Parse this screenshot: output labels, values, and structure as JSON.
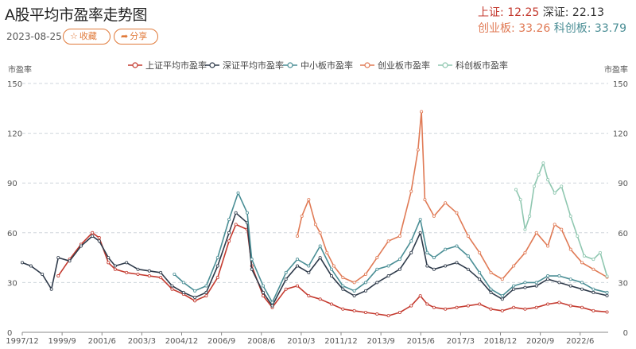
{
  "header": {
    "title": "A股平均市盈率走势图",
    "date": "2023-08-25",
    "fav_label": "收藏",
    "share_label": "分享"
  },
  "stats": {
    "sh_label": "上证:",
    "sh_value": "12.25",
    "sz_label": "深证:",
    "sz_value": "22.13",
    "cyb_label": "创业板:",
    "cyb_value": "33.26",
    "kcb_label": "科创板:",
    "kcb_value": "33.79"
  },
  "chart_data": {
    "type": "line",
    "title": "",
    "ylabel_left": "市盈率",
    "ylabel_right": "市盈率",
    "ylim": [
      0,
      150
    ],
    "yticks": [
      0,
      30,
      60,
      90,
      120,
      150
    ],
    "xlim": [
      1997.92,
      2023.65
    ],
    "x_tick_labels": [
      "1997/12",
      "1999/9",
      "2001/6",
      "2003/3",
      "2004/12",
      "2006/9",
      "2008/6",
      "2010/3",
      "2011/12",
      "2013/9",
      "2015/6",
      "2017/3",
      "2018/12",
      "2020/9",
      "2022/6"
    ],
    "x_tick_values": [
      1997.92,
      1999.67,
      2001.42,
      2003.17,
      2004.92,
      2006.67,
      2008.42,
      2010.17,
      2011.92,
      2013.67,
      2015.42,
      2017.17,
      2018.92,
      2020.67,
      2022.42
    ],
    "legend_position": "top",
    "grid": true,
    "series": [
      {
        "name": "上证平均市盈率",
        "color": "#c43a2f",
        "x": [
          1999.5,
          2000.0,
          2000.5,
          2001.0,
          2001.3,
          2001.7,
          2002.0,
          2002.5,
          2003.0,
          2003.5,
          2004.0,
          2004.5,
          2005.0,
          2005.5,
          2006.0,
          2006.5,
          2007.0,
          2007.3,
          2007.8,
          2008.0,
          2008.5,
          2008.9,
          2009.5,
          2010.0,
          2010.5,
          2011.0,
          2011.5,
          2012.0,
          2012.5,
          2013.0,
          2013.5,
          2014.0,
          2014.5,
          2015.0,
          2015.4,
          2015.7,
          2016.0,
          2016.5,
          2017.0,
          2017.5,
          2018.0,
          2018.5,
          2019.0,
          2019.5,
          2020.0,
          2020.5,
          2021.0,
          2021.5,
          2022.0,
          2022.5,
          2023.0,
          2023.6
        ],
        "y": [
          34,
          44,
          53,
          60,
          57,
          42,
          38,
          36,
          35,
          34,
          33,
          26,
          23,
          19,
          22,
          33,
          55,
          65,
          62,
          40,
          22,
          15,
          26,
          28,
          22,
          20,
          17,
          14,
          13,
          12,
          11,
          10,
          12,
          16,
          22,
          17,
          15,
          14,
          15,
          16,
          17,
          14,
          13,
          15,
          14,
          15,
          17,
          18,
          16,
          15,
          13,
          12.25
        ]
      },
      {
        "name": "深证平均市盈率",
        "color": "#2e3a4a",
        "x": [
          1997.92,
          1998.3,
          1998.8,
          1999.2,
          1999.5,
          2000.0,
          2000.5,
          2001.0,
          2001.3,
          2001.7,
          2002.0,
          2002.5,
          2003.0,
          2003.5,
          2004.0,
          2004.5,
          2005.0,
          2005.5,
          2006.0,
          2006.5,
          2007.0,
          2007.3,
          2007.8,
          2008.0,
          2008.5,
          2008.9,
          2009.5,
          2010.0,
          2010.5,
          2011.0,
          2011.5,
          2012.0,
          2012.5,
          2013.0,
          2013.5,
          2014.0,
          2014.5,
          2015.0,
          2015.4,
          2015.7,
          2016.0,
          2016.5,
          2017.0,
          2017.5,
          2018.0,
          2018.5,
          2019.0,
          2019.5,
          2020.0,
          2020.5,
          2021.0,
          2021.5,
          2022.0,
          2022.5,
          2023.0,
          2023.6
        ],
        "y": [
          42,
          40,
          35,
          26,
          45,
          43,
          52,
          58,
          55,
          45,
          40,
          42,
          38,
          37,
          36,
          28,
          24,
          21,
          24,
          40,
          60,
          72,
          66,
          38,
          24,
          16,
          32,
          40,
          36,
          45,
          34,
          26,
          22,
          25,
          30,
          34,
          38,
          48,
          60,
          40,
          38,
          40,
          42,
          38,
          32,
          24,
          20,
          26,
          27,
          28,
          32,
          30,
          28,
          26,
          24,
          22.13
        ]
      },
      {
        "name": "中小板市盈率",
        "color": "#4a8e95",
        "x": [
          2004.6,
          2005.0,
          2005.5,
          2006.0,
          2006.5,
          2007.0,
          2007.4,
          2007.8,
          2008.0,
          2008.5,
          2008.9,
          2009.5,
          2010.0,
          2010.5,
          2011.0,
          2011.5,
          2012.0,
          2012.5,
          2013.0,
          2013.5,
          2014.0,
          2014.5,
          2015.0,
          2015.4,
          2015.7,
          2016.0,
          2016.5,
          2017.0,
          2017.5,
          2018.0,
          2018.5,
          2019.0,
          2019.5,
          2020.0,
          2020.5,
          2021.0,
          2021.5,
          2022.0,
          2022.5,
          2023.0,
          2023.6
        ],
        "y": [
          35,
          30,
          25,
          28,
          45,
          68,
          84,
          72,
          44,
          28,
          18,
          36,
          44,
          40,
          52,
          38,
          28,
          25,
          30,
          38,
          40,
          44,
          55,
          68,
          48,
          45,
          50,
          52,
          46,
          36,
          26,
          22,
          28,
          30,
          30,
          34,
          34,
          32,
          30,
          26,
          24
        ]
      },
      {
        "name": "创业板市盈率",
        "color": "#e07a55",
        "x": [
          2010.0,
          2010.2,
          2010.5,
          2010.8,
          2011.0,
          2011.3,
          2011.6,
          2012.0,
          2012.5,
          2013.0,
          2013.5,
          2014.0,
          2014.5,
          2015.0,
          2015.3,
          2015.45,
          2015.6,
          2016.0,
          2016.5,
          2017.0,
          2017.5,
          2018.0,
          2018.5,
          2019.0,
          2019.5,
          2020.0,
          2020.5,
          2021.0,
          2021.3,
          2021.6,
          2022.0,
          2022.5,
          2023.0,
          2023.6
        ],
        "y": [
          58,
          70,
          80,
          65,
          60,
          48,
          40,
          33,
          30,
          35,
          45,
          55,
          58,
          85,
          110,
          133,
          80,
          70,
          78,
          72,
          58,
          48,
          36,
          32,
          40,
          48,
          60,
          52,
          65,
          62,
          50,
          42,
          38,
          33.26
        ]
      },
      {
        "name": "科创板市盈率",
        "color": "#8fc7b0",
        "x": [
          2019.6,
          2019.8,
          2020.0,
          2020.2,
          2020.4,
          2020.6,
          2020.8,
          2021.0,
          2021.3,
          2021.6,
          2022.0,
          2022.3,
          2022.6,
          2023.0,
          2023.3,
          2023.6
        ],
        "y": [
          86,
          80,
          62,
          70,
          88,
          95,
          102,
          92,
          84,
          88,
          70,
          58,
          46,
          44,
          48,
          33.79
        ]
      }
    ]
  }
}
